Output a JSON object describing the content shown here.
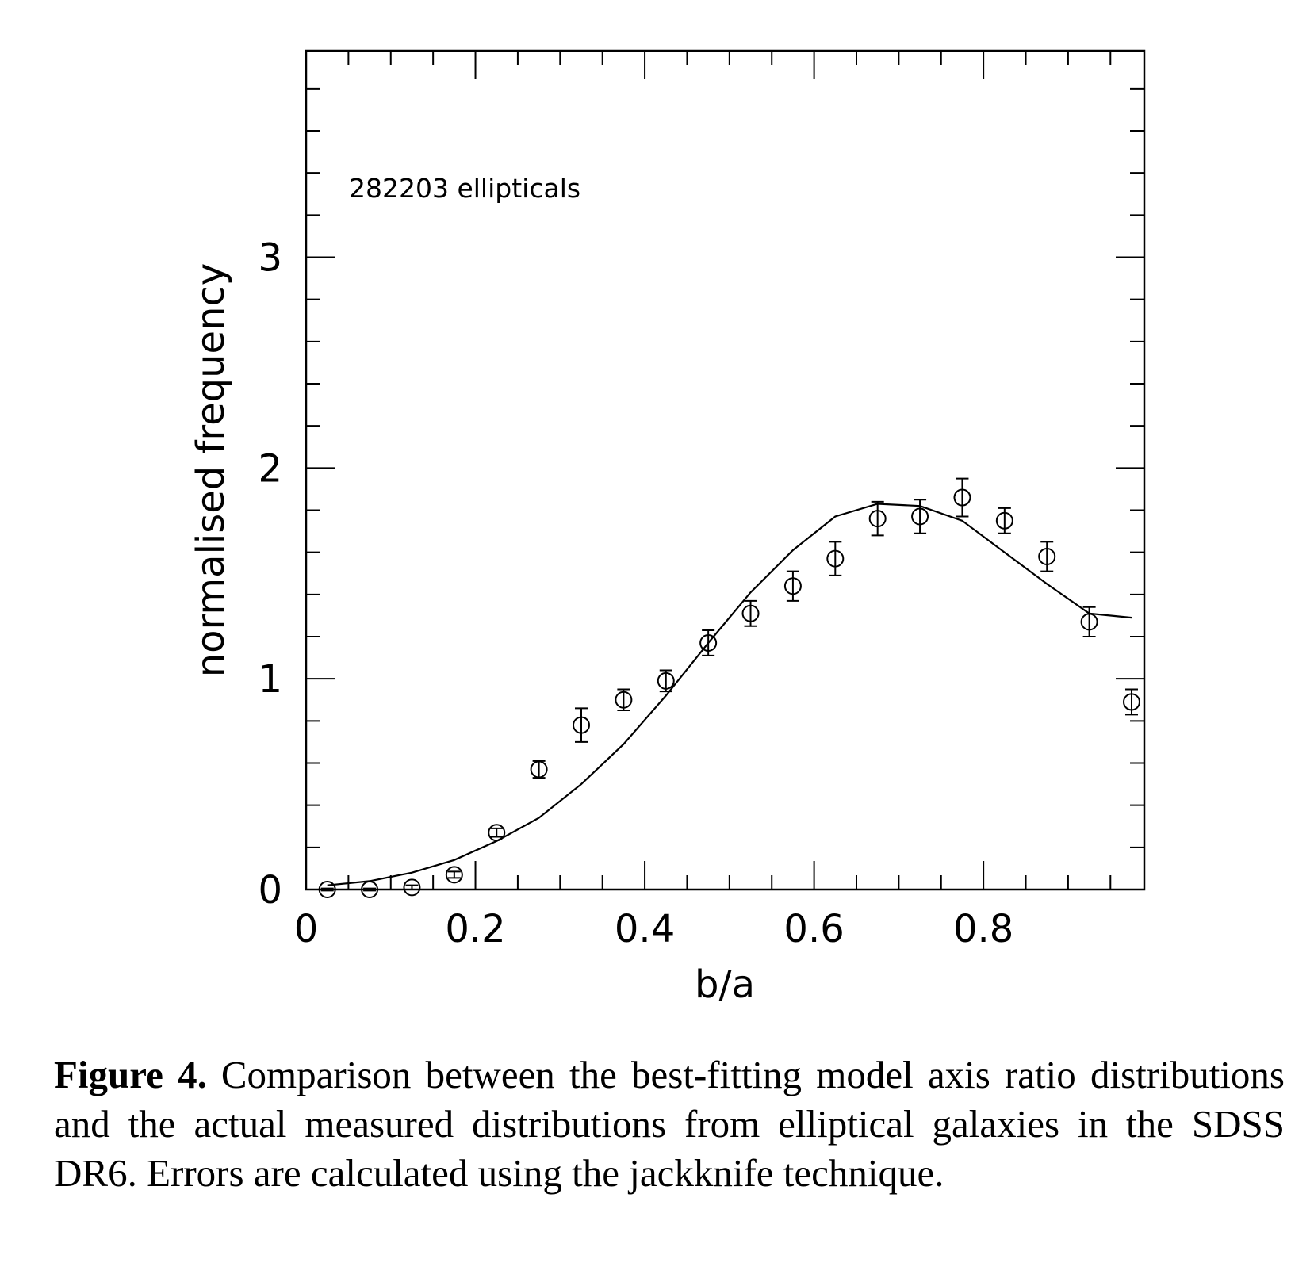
{
  "chart_data": {
    "type": "scatter",
    "xlabel": "b/a",
    "ylabel": "normalised frequency",
    "xlim": [
      0,
      0.99
    ],
    "ylim": [
      0,
      3.98
    ],
    "x_ticks": [
      0,
      0.2,
      0.4,
      0.6,
      0.8
    ],
    "x_tick_labels": [
      "0",
      "0.2",
      "0.4",
      "0.6",
      "0.8"
    ],
    "y_ticks": [
      0,
      1,
      2,
      3
    ],
    "y_tick_labels": [
      "0",
      "1",
      "2",
      "3"
    ],
    "annotation": "282203 ellipticals",
    "grid": false,
    "legend": "none",
    "series": [
      {
        "kind": "points-with-errorbars",
        "x": [
          0.025,
          0.075,
          0.125,
          0.175,
          0.225,
          0.275,
          0.325,
          0.375,
          0.425,
          0.475,
          0.525,
          0.575,
          0.625,
          0.675,
          0.725,
          0.775,
          0.825,
          0.875,
          0.925,
          0.975
        ],
        "y": [
          0.0,
          0.0,
          0.01,
          0.07,
          0.27,
          0.57,
          0.78,
          0.9,
          0.99,
          1.17,
          1.31,
          1.44,
          1.57,
          1.76,
          1.77,
          1.86,
          1.75,
          1.58,
          1.27,
          0.89
        ],
        "yerr": [
          0.005,
          0.005,
          0.01,
          0.015,
          0.02,
          0.04,
          0.08,
          0.05,
          0.05,
          0.06,
          0.06,
          0.07,
          0.08,
          0.08,
          0.08,
          0.09,
          0.06,
          0.07,
          0.07,
          0.06
        ]
      },
      {
        "kind": "model-curve",
        "x": [
          0.025,
          0.075,
          0.125,
          0.175,
          0.225,
          0.275,
          0.325,
          0.375,
          0.425,
          0.475,
          0.525,
          0.575,
          0.625,
          0.675,
          0.725,
          0.775,
          0.825,
          0.875,
          0.925,
          0.975
        ],
        "y": [
          0.02,
          0.04,
          0.08,
          0.14,
          0.23,
          0.34,
          0.5,
          0.69,
          0.92,
          1.17,
          1.41,
          1.61,
          1.77,
          1.83,
          1.82,
          1.75,
          1.6,
          1.45,
          1.31,
          1.29
        ]
      }
    ]
  },
  "caption": {
    "label": "Figure 4.",
    "text": "Comparison between the best-fitting model axis ratio distributions and the actual measured distributions from elliptical galaxies in the SDSS DR6. Errors are calculated using the jackknife technique."
  },
  "colors": {
    "ink": "#000000",
    "background": "#ffffff"
  }
}
